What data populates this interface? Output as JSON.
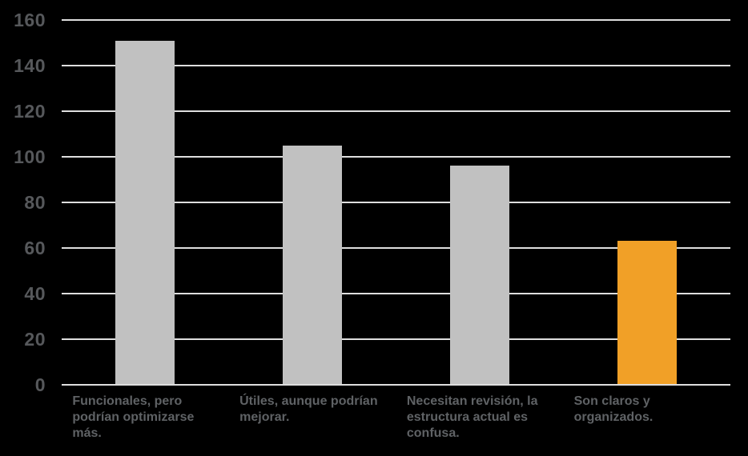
{
  "chart_data": {
    "type": "bar",
    "title": "",
    "xlabel": "",
    "ylabel": "",
    "categories": [
      "Funcionales, pero podrían optimizarse más.",
      "Útiles, aunque podrían mejorar.",
      "Necesitan revisión, la estructura actual es confusa.",
      "Son claros y organizados."
    ],
    "values": [
      151,
      105,
      96,
      63
    ],
    "bar_colors": [
      "#C1C1C1",
      "#C1C1C1",
      "#C1C1C1",
      "#F1A027"
    ],
    "ylim": [
      0,
      160
    ],
    "yticks": [
      0,
      20,
      40,
      60,
      80,
      100,
      120,
      140,
      160
    ],
    "grid": true,
    "legend": "none",
    "colors": {
      "background": "#000000",
      "gridline": "#DEDEDE",
      "ytick_label": "#56585B",
      "category_label": "#5F6265",
      "bar_default": "#C1C1C1",
      "bar_highlight": "#F1A027"
    }
  }
}
